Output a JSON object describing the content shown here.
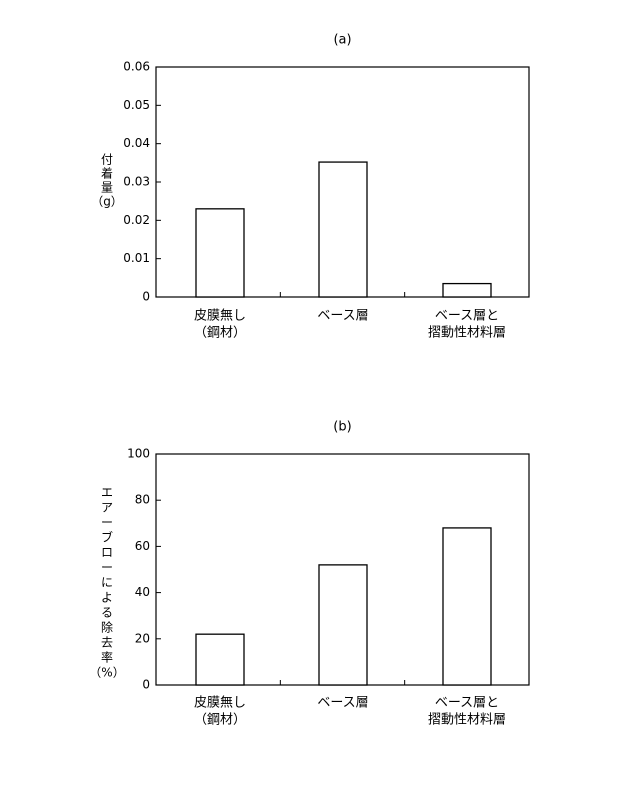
{
  "chart_data": [
    {
      "type": "bar",
      "title": "(a)",
      "ylabel": "付着量（g）",
      "ylabel_lines": [
        "付",
        "着",
        "量",
        "（g）"
      ],
      "categories": [
        "皮膜無し（鋼材）",
        "ベース層",
        "ベース層と摺動性材料層"
      ],
      "category_lines": [
        [
          "皮膜無し",
          "（鋼材）"
        ],
        [
          "ベース層"
        ],
        [
          "ベース層と",
          "摺動性材料層"
        ]
      ],
      "values": [
        0.023,
        0.0352,
        0.0035
      ],
      "ylim": [
        0,
        0.06
      ],
      "yticks": [
        "0",
        "0.01",
        "0.02",
        "0.03",
        "0.04",
        "0.05",
        "0.06"
      ],
      "grid": false,
      "bar_fill": "#ffffff",
      "bar_stroke": "#000000"
    },
    {
      "type": "bar",
      "title": "(b)",
      "ylabel": "エアーブローによる除去率（%）",
      "ylabel_lines": [
        "エ",
        "ア",
        "ー",
        "ブ",
        "ロ",
        "ー",
        "に",
        "よ",
        "る",
        "除",
        "去",
        "率",
        "（%）"
      ],
      "categories": [
        "皮膜無し（鋼材）",
        "ベース層",
        "ベース層と摺動性材料層"
      ],
      "category_lines": [
        [
          "皮膜無し",
          "（鋼材）"
        ],
        [
          "ベース層"
        ],
        [
          "ベース層と",
          "摺動性材料層"
        ]
      ],
      "values": [
        22,
        52,
        68
      ],
      "ylim": [
        0,
        100
      ],
      "yticks": [
        "0",
        "20",
        "40",
        "60",
        "80",
        "100"
      ],
      "grid": false,
      "bar_fill": "#ffffff",
      "bar_stroke": "#000000"
    }
  ]
}
